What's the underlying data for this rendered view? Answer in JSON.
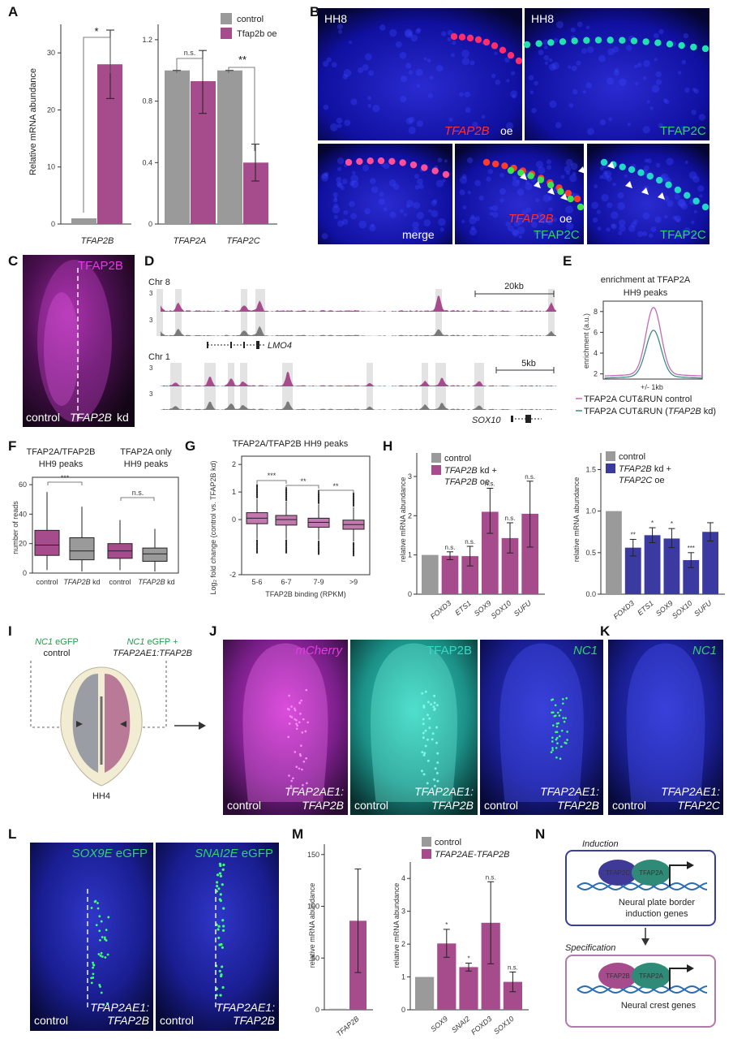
{
  "panels": [
    "A",
    "B",
    "C",
    "D",
    "E",
    "F",
    "G",
    "H",
    "I",
    "J",
    "K",
    "L",
    "M",
    "N"
  ],
  "colors": {
    "control": "#9a9a9a",
    "oe": "#a64c8c",
    "kd_blue": "#3b3aa0",
    "magenta": "#c021b5",
    "teal": "#1fb9a3",
    "green": "#2fd36a"
  },
  "A": {
    "legend": [
      "control",
      "Tfap2b oe"
    ],
    "ylabel": "Relative mRNA abundance",
    "sig1": "*",
    "sig2": "n.s.",
    "sig3": "**",
    "xl1": "TFAP2B",
    "xl2": "TFAP2A",
    "xl3": "TFAP2C",
    "ticks1": [
      "0",
      "10",
      "20",
      "30"
    ],
    "ticks2": [
      "0",
      "0.4",
      "0.8",
      "1.2"
    ]
  },
  "B": {
    "s1": "HH8",
    "s2": "HH8",
    "c1": "TFAP2B",
    "c1b": "oe",
    "c2": "TFAP2C",
    "c3": "merge",
    "c4a": "TFAP2B",
    "c4b": "oe",
    "c4c": "TFAP2C",
    "c5": "TFAP2C"
  },
  "C": {
    "title": "TFAP2B",
    "left": "control",
    "right": "TFAP2B",
    "right2": "kd"
  },
  "D": {
    "chr1": "Chr 8",
    "chr2": "Chr 1",
    "gene1": "LMO4",
    "gene2": "SOX10",
    "scale1": "20kb",
    "scale2": "5kb",
    "y": "3"
  },
  "E": {
    "title1": "enrichment at TFAP2A",
    "title2": "HH9 peaks",
    "ylabel": "enrichment (a.u.)",
    "xlabel": "+/- 1kb",
    "ticks": [
      "2",
      "4",
      "6",
      "8"
    ],
    "leg1": "TFAP2A CUT&RUN control",
    "leg2a": "TFAP2A CUT&RUN (",
    "leg2b": "TFAP2B",
    "leg2c": " kd)"
  },
  "F": {
    "t1a": "TFAP2A/TFAP2B",
    "t1b": "HH9 peaks",
    "t2a": "TFAP2A only",
    "t2b": "HH9 peaks",
    "ylabel": "number of reads",
    "ticks": [
      "0",
      "20",
      "40",
      "60"
    ],
    "sig1": "***",
    "sig2": "n.s.",
    "x1": "control",
    "x2": "TFAP2B",
    "x2b": "kd",
    "x3": "control",
    "x4": "TFAP2B",
    "x4b": "kd"
  },
  "G": {
    "title": "TFAP2A/TFAP2B HH9 peaks",
    "ylabel": "Log₂ fold change (control vs. TFAP2B kd)",
    "xlabel": "TFAP2B binding (RPKM)",
    "cats": [
      "5-6",
      "6-7",
      "7-9",
      ">9"
    ],
    "ticks": [
      "-2",
      "0",
      "1",
      "2"
    ],
    "sig1": "***",
    "sig2": "**",
    "sig3": "**"
  },
  "H1": {
    "leg1": "control",
    "leg2a": "TFAP2B",
    "leg2b": " kd +",
    "leg2c": "TFAP2B",
    "leg2d": " oe",
    "ylabel": "relative mRNA abundance",
    "cats": [
      "FOXD3",
      "ETS1",
      "SOX9",
      "SOX10",
      "SUFU"
    ],
    "sig": [
      "n.s.",
      "n.s.",
      "n.s.",
      "n.s.",
      "n.s."
    ],
    "ticks": [
      "0",
      "1",
      "2",
      "3"
    ]
  },
  "H2": {
    "leg1": "control",
    "leg2a": "TFAP2B",
    "leg2b": " kd +",
    "leg2c": "TFAP2C",
    "leg2d": " oe",
    "ylabel": "relative mRNA abundance",
    "cats": [
      "FOXD3",
      "ETS1",
      "SOX9",
      "SOX10",
      "SUFU"
    ],
    "sig": [
      "**",
      "*",
      "*",
      "***",
      ""
    ],
    "ticks": [
      "0.0",
      "0.5",
      "1.0",
      "1.5"
    ]
  },
  "I": {
    "l1a": "NC1",
    "l1b": " eGFP",
    "l1c": "control",
    "l2a": "NC1",
    "l2b": " eGFP +",
    "l2c": "TFAP2AE1:TFAP2B",
    "stage": "HH4"
  },
  "J": {
    "c1": "mCherry",
    "c2": "TFAP2B",
    "c3": "NC1",
    "ctrl": "control",
    "e1": "TFAP2AE1:",
    "e2": "TFAP2B"
  },
  "K": {
    "c1": "NC1",
    "ctrl": "control",
    "e1": "TFAP2AE1:",
    "e2": "TFAP2C"
  },
  "L": {
    "c1a": "SOX9E",
    "c1b": " eGFP",
    "c2a": "SNAI2E",
    "c2b": " eGFP",
    "ctrl": "control",
    "e1": "TFAP2AE1:",
    "e2": "TFAP2B"
  },
  "M1": {
    "ylabel": "relative mRNA abundance",
    "ticks": [
      "0",
      "50",
      "100",
      "150"
    ],
    "cat": "TFAP2B"
  },
  "M2": {
    "leg1": "control",
    "leg2": "TFAP2AE-TFAP2B",
    "ylabel": "relative mRNA abundance",
    "ticks": [
      "0",
      "1",
      "2",
      "3",
      "4"
    ],
    "cats": [
      "SOX9",
      "SNAI2",
      "FOXD3",
      "SOX10"
    ],
    "sig": [
      "*",
      "*",
      "n.s.",
      "n.s."
    ]
  },
  "N": {
    "t1": "Induction",
    "t2": "Specification",
    "p1": "TFAP2C",
    "p2": "TFAP2A",
    "p3": "TFAP2B",
    "p4": "TFAP2A",
    "g1a": "Neural plate border",
    "g1b": "induction genes",
    "g2": "Neural crest genes"
  },
  "chart_data": [
    {
      "type": "bar",
      "panel": "A-left",
      "categories": [
        "TFAP2B"
      ],
      "series": [
        {
          "name": "control",
          "values": [
            1.0
          ]
        },
        {
          "name": "Tfap2b oe",
          "values": [
            28.0
          ]
        }
      ],
      "errors": {
        "Tfap2b oe": [
          [
            22,
            34
          ]
        ]
      },
      "ylim": [
        0,
        35
      ]
    },
    {
      "type": "bar",
      "panel": "A-right",
      "categories": [
        "TFAP2A",
        "TFAP2C"
      ],
      "series": [
        {
          "name": "control",
          "values": [
            1.0,
            1.0
          ]
        },
        {
          "name": "Tfap2b oe",
          "values": [
            0.93,
            0.4
          ]
        }
      ],
      "errors": {
        "Tfap2b oe": [
          [
            0.72,
            1.13
          ],
          [
            0.28,
            0.52
          ]
        ]
      },
      "ylim": [
        0,
        1.3
      ]
    },
    {
      "type": "line",
      "panel": "E",
      "x": [
        "-1kb",
        "0",
        "+1kb"
      ],
      "series": [
        {
          "name": "TFAP2A CUT&RUN control",
          "peak": 8.2,
          "base": 1.8
        },
        {
          "name": "TFAP2A CUT&RUN (TFAP2B kd)",
          "peak": 6.0,
          "base": 1.6
        }
      ],
      "ylim": [
        1.5,
        9
      ]
    },
    {
      "type": "box",
      "panel": "F",
      "categories": [
        "control",
        "TFAP2B kd",
        "control",
        "TFAP2B kd"
      ],
      "median": [
        19,
        15,
        15,
        13
      ],
      "q1": [
        12,
        9,
        10,
        8
      ],
      "q3": [
        29,
        24,
        20,
        17
      ],
      "whisker_low": [
        2,
        1,
        2,
        1
      ],
      "whisker_high": [
        55,
        45,
        36,
        30
      ],
      "ylim": [
        0,
        65
      ]
    },
    {
      "type": "box",
      "panel": "G",
      "categories": [
        "5-6",
        "6-7",
        "7-9",
        ">9"
      ],
      "median": [
        0.05,
        0.0,
        -0.1,
        -0.18
      ],
      "q1": [
        -0.15,
        -0.2,
        -0.28,
        -0.35
      ],
      "q3": [
        0.25,
        0.15,
        0.05,
        -0.02
      ],
      "whisker_low": [
        -0.7,
        -0.7,
        -0.75,
        -0.8
      ],
      "whisker_high": [
        0.75,
        0.65,
        0.55,
        0.45
      ],
      "ylim": [
        -2,
        2.3
      ]
    },
    {
      "type": "bar",
      "panel": "H-left",
      "categories": [
        "control",
        "FOXD3",
        "ETS1",
        "SOX9",
        "SOX10",
        "SUFU"
      ],
      "values": [
        1.0,
        0.98,
        0.97,
        2.1,
        1.43,
        2.05
      ],
      "errors": [
        [
          1,
          1
        ],
        [
          0.88,
          1.08
        ],
        [
          0.72,
          1.22
        ],
        [
          1.55,
          2.7
        ],
        [
          1.05,
          1.82
        ],
        [
          1.2,
          2.88
        ]
      ],
      "ylim": [
        0,
        3.6
      ]
    },
    {
      "type": "bar",
      "panel": "H-right",
      "categories": [
        "control",
        "FOXD3",
        "ETS1",
        "SOX9",
        "SOX10",
        "SUFU"
      ],
      "values": [
        1.0,
        0.56,
        0.71,
        0.67,
        0.41,
        0.75
      ],
      "errors": [
        [
          1,
          1
        ],
        [
          0.46,
          0.66
        ],
        [
          0.62,
          0.8
        ],
        [
          0.56,
          0.79
        ],
        [
          0.32,
          0.5
        ],
        [
          0.64,
          0.86
        ]
      ],
      "ylim": [
        0,
        1.7
      ]
    },
    {
      "type": "bar",
      "panel": "M-left",
      "categories": [
        "control",
        "TFAP2B"
      ],
      "values": [
        1.0,
        86
      ],
      "errors": [
        [
          1,
          1
        ],
        [
          36,
          136
        ]
      ],
      "ylim": [
        0,
        160
      ]
    },
    {
      "type": "bar",
      "panel": "M-right",
      "categories": [
        "control",
        "SOX9",
        "SNAI2",
        "FOXD3",
        "SOX10"
      ],
      "values": [
        1.0,
        2.02,
        1.3,
        2.65,
        0.85
      ],
      "errors": [
        [
          1,
          1
        ],
        [
          1.6,
          2.45
        ],
        [
          1.18,
          1.42
        ],
        [
          1.4,
          3.9
        ],
        [
          0.55,
          1.15
        ]
      ],
      "ylim": [
        0,
        4.5
      ]
    }
  ]
}
